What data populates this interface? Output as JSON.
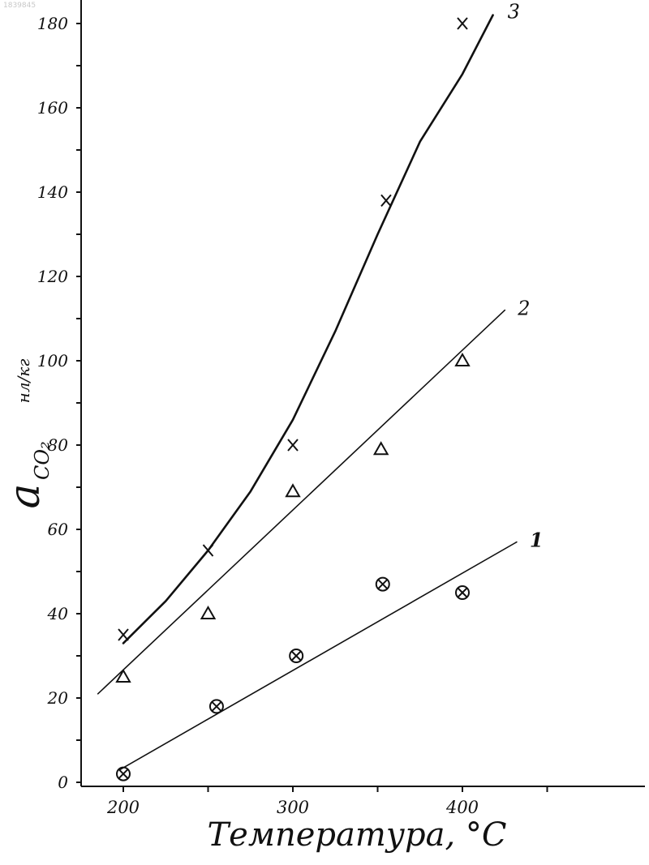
{
  "watermark": "1839845",
  "chart_data": {
    "type": "scatter",
    "xlabel": "Температура, °C",
    "ylabel_main": "a",
    "ylabel_sub": "CO₂",
    "ylabel_unit": "нл/кг",
    "xlim": [
      175,
      500
    ],
    "ylim": [
      -4,
      190
    ],
    "xticks": [
      200,
      300,
      400
    ],
    "xtick_labels": [
      "200",
      "300",
      "400"
    ],
    "yticks": [
      0,
      20,
      40,
      60,
      80,
      100,
      120,
      140,
      160,
      180
    ],
    "ytick_labels": [
      "0",
      "20",
      "40",
      "60",
      "80",
      "100",
      "120",
      "140",
      "160",
      "180"
    ],
    "grid": false,
    "series": [
      {
        "name": "1",
        "marker": "circled-x",
        "points": [
          [
            200,
            2
          ],
          [
            255,
            18
          ],
          [
            302,
            30
          ],
          [
            353,
            47
          ],
          [
            400,
            45
          ]
        ],
        "fit": [
          [
            198,
            3
          ],
          [
            432,
            57
          ]
        ]
      },
      {
        "name": "2",
        "marker": "triangle",
        "points": [
          [
            200,
            25
          ],
          [
            250,
            40
          ],
          [
            300,
            69
          ],
          [
            352,
            79
          ],
          [
            400,
            100
          ]
        ],
        "fit": [
          [
            185,
            21
          ],
          [
            425,
            112
          ]
        ]
      },
      {
        "name": "3",
        "marker": "x",
        "points": [
          [
            200,
            35
          ],
          [
            250,
            55
          ],
          [
            300,
            80
          ],
          [
            355,
            138
          ],
          [
            400,
            180
          ]
        ],
        "fit": [
          [
            200,
            33
          ],
          [
            225,
            43
          ],
          [
            250,
            55
          ],
          [
            275,
            69
          ],
          [
            300,
            86
          ],
          [
            325,
            107
          ],
          [
            350,
            130
          ],
          [
            375,
            152
          ],
          [
            400,
            168
          ],
          [
            418,
            182
          ]
        ]
      }
    ]
  }
}
